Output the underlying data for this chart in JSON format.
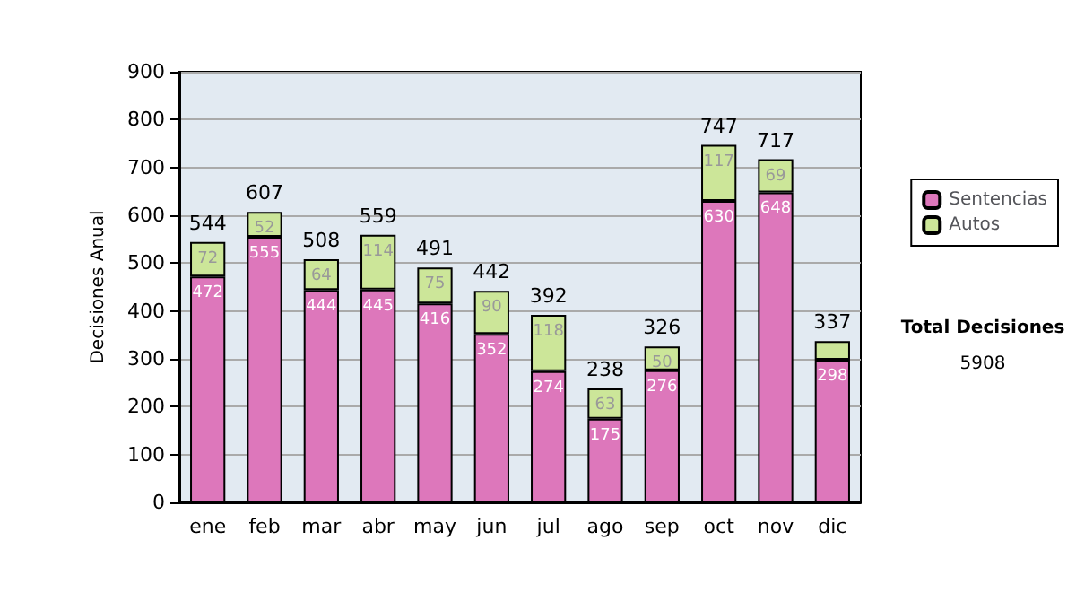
{
  "chart_data": {
    "type": "bar",
    "ylabel": "Decisiones Anual",
    "categories": [
      "ene",
      "feb",
      "mar",
      "abr",
      "may",
      "jun",
      "jul",
      "ago",
      "sep",
      "oct",
      "nov",
      "dic"
    ],
    "series": [
      {
        "name": "Sentencias",
        "color": "#dd77bb",
        "values": [
          472,
          555,
          444,
          445,
          416,
          352,
          274,
          175,
          276,
          630,
          648,
          298
        ],
        "value_labels": [
          "472",
          "555",
          "444",
          "445",
          "416",
          "352",
          "274",
          "175",
          "276",
          "630",
          "648",
          "298"
        ]
      },
      {
        "name": "Autos",
        "color": "#cce699",
        "values": [
          72,
          52,
          64,
          114,
          75,
          90,
          118,
          63,
          50,
          117,
          69,
          39
        ],
        "value_labels": [
          "72",
          "52",
          "64",
          "114",
          "75",
          "90",
          "118",
          "63",
          "50",
          "117",
          "69",
          null
        ]
      }
    ],
    "stacked": true,
    "totals": [
      "544",
      "607",
      "508",
      "559",
      "491",
      "442",
      "392",
      "238",
      "326",
      "747",
      "717",
      "337"
    ],
    "ylim": [
      0,
      900
    ],
    "yticks": [
      0,
      100,
      200,
      300,
      400,
      500,
      600,
      700,
      800,
      900
    ],
    "grid": "y",
    "legend": "right",
    "annotations": [
      "Total Decisiones",
      "5908"
    ]
  }
}
